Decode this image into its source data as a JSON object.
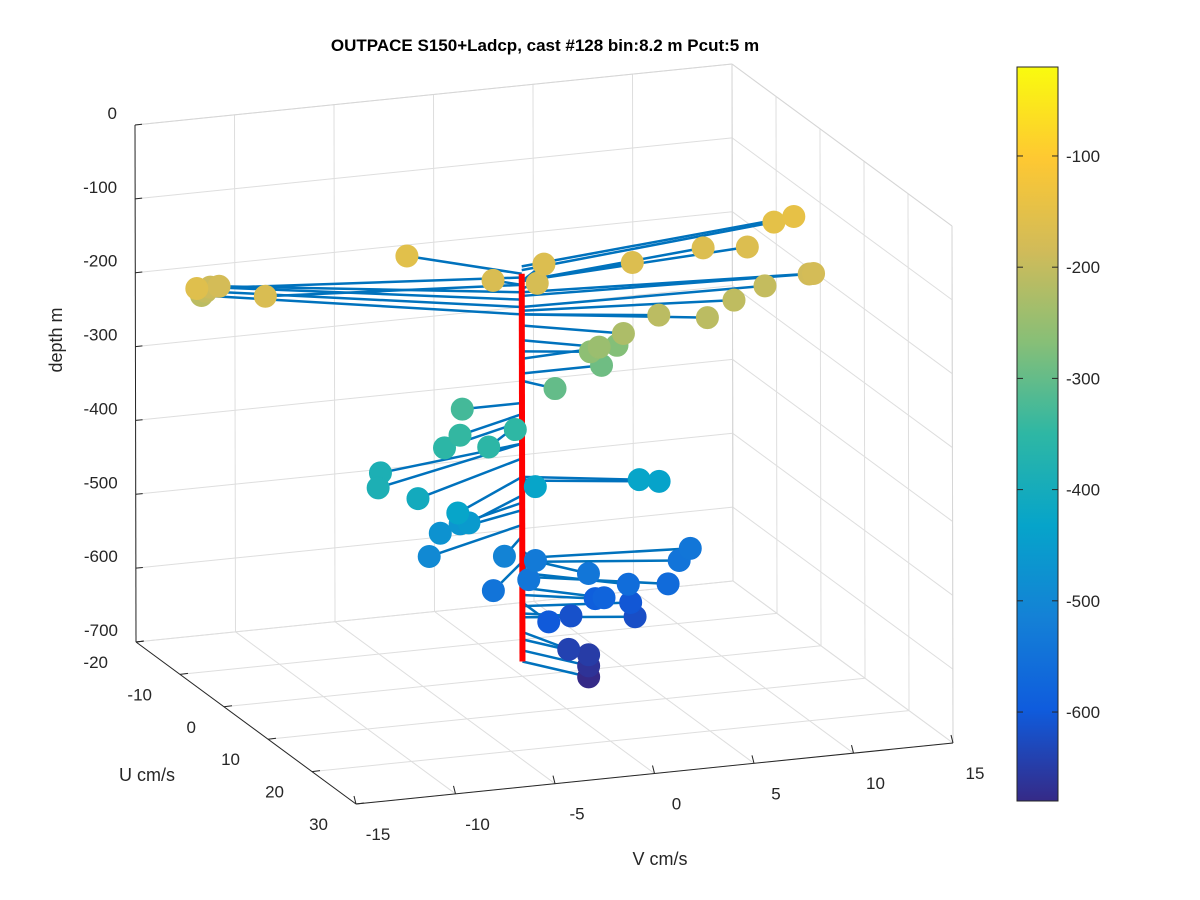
{
  "chart_data": {
    "type": "3d-stick-scatter",
    "title": "OUTPACE S150+Ladcp, cast #128 bin:8.2 m  Pcut:5 m",
    "zlabel": "depth m",
    "xlabel": "U cm/s",
    "ylabel": "V cm/s",
    "zlim": [
      -700,
      0
    ],
    "xlim": [
      -20,
      30
    ],
    "ylim": [
      -15,
      15
    ],
    "z_ticks": [
      "0",
      "-100",
      "-200",
      "-300",
      "-400",
      "-500",
      "-600",
      "-700"
    ],
    "x_ticks": [
      "-20",
      "-10",
      "0",
      "10",
      "20",
      "30"
    ],
    "y_ticks": [
      "-15",
      "-10",
      "-5",
      "0",
      "5",
      "10",
      "15"
    ],
    "grid": true,
    "colorbar": {
      "colormap": "parula",
      "range": [
        -680,
        -20
      ],
      "ticks": [
        "-100",
        "-200",
        "-300",
        "-400",
        "-500",
        "-600"
      ]
    },
    "reference_line_color": "#ff0000",
    "stick_color": "#0072bd",
    "points": [
      {
        "depth": -160,
        "u": -6,
        "v": -15
      },
      {
        "depth": -170,
        "u": -4,
        "v": -12
      },
      {
        "depth": -180,
        "u": -10,
        "v": -13
      },
      {
        "depth": -190,
        "u": -12,
        "v": -13
      },
      {
        "depth": -200,
        "u": -13,
        "v": -13
      },
      {
        "depth": -210,
        "u": -14,
        "v": -13
      },
      {
        "depth": -155,
        "u": -8,
        "v": -4
      },
      {
        "depth": -170,
        "u": -2,
        "v": -1
      },
      {
        "depth": -175,
        "u": -1,
        "v": 1
      },
      {
        "depth": -165,
        "u": -4,
        "v": 2
      },
      {
        "depth": -165,
        "u": -2,
        "v": 6
      },
      {
        "depth": -165,
        "u": -4,
        "v": 10
      },
      {
        "depth": -150,
        "u": -6,
        "v": 14
      },
      {
        "depth": -145,
        "u": -6,
        "v": 15
      },
      {
        "depth": -165,
        "u": -3,
        "v": 12
      },
      {
        "depth": -180,
        "u": 3,
        "v": 14
      },
      {
        "depth": -185,
        "u": 2,
        "v": 14
      },
      {
        "depth": -200,
        "u": 1,
        "v": 12
      },
      {
        "depth": -205,
        "u": 3,
        "v": 10
      },
      {
        "depth": -210,
        "u": 6,
        "v": 8
      },
      {
        "depth": -210,
        "u": 4,
        "v": 6
      },
      {
        "depth": -225,
        "u": 5,
        "v": 4
      },
      {
        "depth": -245,
        "u": 4,
        "v": 3
      },
      {
        "depth": -260,
        "u": 2,
        "v": 3
      },
      {
        "depth": -270,
        "u": -1,
        "v": 5
      },
      {
        "depth": -290,
        "u": 0,
        "v": 4
      },
      {
        "depth": -300,
        "u": 3,
        "v": 1
      },
      {
        "depth": -330,
        "u": 0,
        "v": -3
      },
      {
        "depth": -345,
        "u": 4,
        "v": -4
      },
      {
        "depth": -355,
        "u": 5,
        "v": -5
      },
      {
        "depth": -350,
        "u": 3,
        "v": -1
      },
      {
        "depth": -355,
        "u": 6,
        "v": -3
      },
      {
        "depth": -385,
        "u": 4,
        "v": -8
      },
      {
        "depth": -385,
        "u": 8,
        "v": -9
      },
      {
        "depth": -405,
        "u": 8,
        "v": -7
      },
      {
        "depth": -430,
        "u": 3,
        "v": 0
      },
      {
        "depth": -430,
        "u": 4,
        "v": 5
      },
      {
        "depth": -435,
        "u": 4,
        "v": 6
      },
      {
        "depth": -430,
        "u": 8,
        "v": -5
      },
      {
        "depth": -455,
        "u": 6,
        "v": -4
      },
      {
        "depth": -465,
        "u": 4,
        "v": -4
      },
      {
        "depth": -475,
        "u": 4,
        "v": -5
      },
      {
        "depth": -495,
        "u": 6,
        "v": -6
      },
      {
        "depth": -510,
        "u": 5,
        "v": -2
      },
      {
        "depth": -530,
        "u": 3,
        "v": 0
      },
      {
        "depth": -540,
        "u": 6,
        "v": -1
      },
      {
        "depth": -545,
        "u": 7,
        "v": -3
      },
      {
        "depth": -540,
        "u": 6,
        "v": 2
      },
      {
        "depth": -540,
        "u": 2,
        "v": 8
      },
      {
        "depth": -545,
        "u": 4,
        "v": 7
      },
      {
        "depth": -560,
        "u": 6,
        "v": 4
      },
      {
        "depth": -565,
        "u": 6,
        "v": 6
      },
      {
        "depth": -580,
        "u": 5,
        "v": 3
      },
      {
        "depth": -590,
        "u": 3,
        "v": 3
      },
      {
        "depth": -600,
        "u": 6,
        "v": 0
      },
      {
        "depth": -605,
        "u": 2,
        "v": 5
      },
      {
        "depth": -615,
        "u": 2,
        "v": 2
      },
      {
        "depth": -620,
        "u": 3,
        "v": 5
      },
      {
        "depth": -640,
        "u": 6,
        "v": 1
      },
      {
        "depth": -650,
        "u": 6,
        "v": 2
      },
      {
        "depth": -665,
        "u": 6,
        "v": 2
      },
      {
        "depth": -680,
        "u": 6,
        "v": 2
      }
    ]
  }
}
